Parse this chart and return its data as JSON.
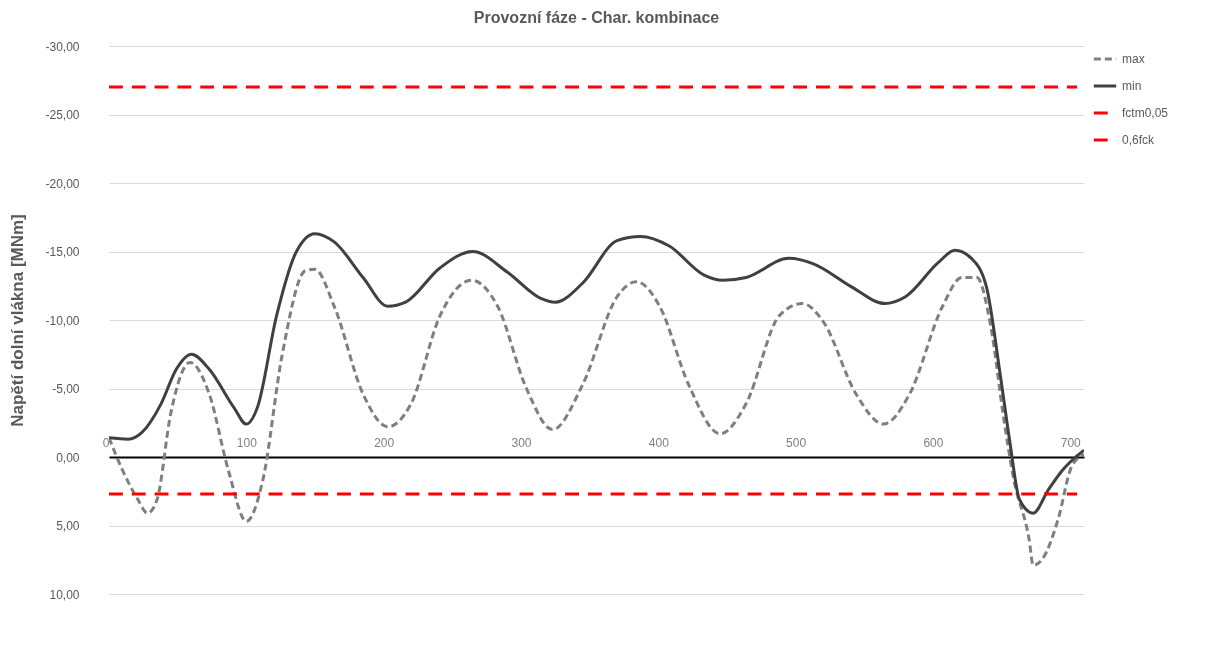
{
  "chart_data": {
    "type": "line",
    "title": "Provozní fáze - Char. kombinace",
    "ylabel": "Napětí dolní vlákna [MNm]",
    "xlim": [
      0,
      710
    ],
    "xticks": [
      0,
      100,
      200,
      300,
      400,
      500,
      600,
      700
    ],
    "ylim": [
      10,
      -30
    ],
    "yticks": [
      {
        "value": -30,
        "label": "-30,00"
      },
      {
        "value": -25,
        "label": "-25,00"
      },
      {
        "value": -20,
        "label": "-20,00"
      },
      {
        "value": -15,
        "label": "-15,00"
      },
      {
        "value": -10,
        "label": "-10,00"
      },
      {
        "value": -5,
        "label": "-5,00"
      },
      {
        "value": 0,
        "label": "0,00"
      },
      {
        "value": 5,
        "label": "5,00"
      },
      {
        "value": 10,
        "label": "10,00"
      }
    ],
    "grid": "y",
    "legend": "right",
    "series": [
      {
        "name": "max",
        "color": "#7f7f7f",
        "line_style": "dashed",
        "x": [
          0,
          10,
          21,
          28,
          35,
          45,
          59,
          73,
          87,
          100,
          112,
          126,
          143,
          150,
          164,
          185,
          203,
          220,
          241,
          264,
          283,
          304,
          323,
          345,
          370,
          384,
          401,
          422,
          445,
          464,
          488,
          505,
          520,
          544,
          564,
          583,
          607,
          621,
          632,
          642,
          652,
          659,
          670,
          673,
          680,
          691,
          701,
          710
        ],
        "values": [
          -1.4,
          1.0,
          3.1,
          4.1,
          3.1,
          -3.2,
          -6.9,
          -4.6,
          1.0,
          4.7,
          1.7,
          -7.4,
          -13.6,
          -13.7,
          -11.0,
          -4.6,
          -2.2,
          -3.9,
          -10.3,
          -12.9,
          -11.0,
          -5.0,
          -2.0,
          -5.3,
          -11.7,
          -12.8,
          -11.0,
          -5.3,
          -1.7,
          -3.9,
          -10.3,
          -11.2,
          -9.9,
          -4.6,
          -2.4,
          -4.6,
          -11.0,
          -13.1,
          -13.1,
          -9.6,
          -2.5,
          1.7,
          6.0,
          7.9,
          7.4,
          4.6,
          0.7,
          -0.2
        ]
      },
      {
        "name": "min",
        "color": "#404040",
        "line_style": "solid",
        "x": [
          0,
          14,
          24,
          38,
          49,
          60,
          73,
          91,
          100,
          108,
          122,
          136,
          150,
          164,
          185,
          203,
          216,
          241,
          265,
          290,
          314,
          325,
          345,
          370,
          387,
          408,
          433,
          447,
          464,
          495,
          513,
          541,
          565,
          580,
          604,
          616,
          628,
          639,
          649,
          656,
          663,
          673,
          684,
          694,
          710
        ],
        "values": [
          -1.4,
          -1.3,
          -1.8,
          -3.9,
          -6.4,
          -7.5,
          -6.4,
          -3.6,
          -2.4,
          -3.6,
          -10.3,
          -14.9,
          -16.3,
          -15.7,
          -13.1,
          -11.0,
          -11.3,
          -13.8,
          -15.0,
          -13.5,
          -11.6,
          -11.3,
          -12.7,
          -15.8,
          -16.1,
          -15.4,
          -13.3,
          -12.9,
          -13.1,
          -14.5,
          -14.1,
          -12.4,
          -11.2,
          -11.7,
          -14.2,
          -15.1,
          -14.5,
          -12.4,
          -6.0,
          -1.1,
          3.1,
          4.1,
          2.4,
          1.0,
          -0.5
        ]
      },
      {
        "name": "fctm0,05",
        "color": "#ff0000",
        "line_style": "dashed",
        "x": [
          0,
          705
        ],
        "values": [
          2.7,
          2.7
        ]
      },
      {
        "name": "0,6fck",
        "color": "#ff0000",
        "line_style": "dashed",
        "x": [
          0,
          705
        ],
        "values": [
          -27,
          -27
        ]
      }
    ]
  }
}
